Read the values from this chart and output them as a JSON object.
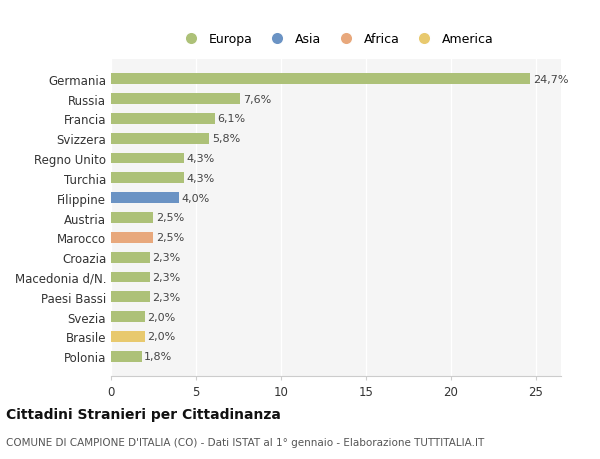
{
  "categories": [
    "Germania",
    "Russia",
    "Francia",
    "Svizzera",
    "Regno Unito",
    "Turchia",
    "Filippine",
    "Austria",
    "Marocco",
    "Croazia",
    "Macedonia d/N.",
    "Paesi Bassi",
    "Svezia",
    "Brasile",
    "Polonia"
  ],
  "values": [
    24.7,
    7.6,
    6.1,
    5.8,
    4.3,
    4.3,
    4.0,
    2.5,
    2.5,
    2.3,
    2.3,
    2.3,
    2.0,
    2.0,
    1.8
  ],
  "labels": [
    "24,7%",
    "7,6%",
    "6,1%",
    "5,8%",
    "4,3%",
    "4,3%",
    "4,0%",
    "2,5%",
    "2,5%",
    "2,3%",
    "2,3%",
    "2,3%",
    "2,0%",
    "2,0%",
    "1,8%"
  ],
  "colors": [
    "#adc178",
    "#adc178",
    "#adc178",
    "#adc178",
    "#adc178",
    "#adc178",
    "#6b93c4",
    "#adc178",
    "#e8a87c",
    "#adc178",
    "#adc178",
    "#adc178",
    "#adc178",
    "#e8c96e",
    "#adc178"
  ],
  "legend": [
    {
      "label": "Europa",
      "color": "#adc178"
    },
    {
      "label": "Asia",
      "color": "#6b93c4"
    },
    {
      "label": "Africa",
      "color": "#e8a87c"
    },
    {
      "label": "America",
      "color": "#e8c96e"
    }
  ],
  "xlim": [
    0,
    26.5
  ],
  "xticks": [
    0,
    5,
    10,
    15,
    20,
    25
  ],
  "title": "Cittadini Stranieri per Cittadinanza",
  "subtitle": "COMUNE DI CAMPIONE D'ITALIA (CO) - Dati ISTAT al 1° gennaio - Elaborazione TUTTITALIA.IT",
  "background_color": "#ffffff",
  "plot_bg_color": "#f5f5f5",
  "grid_color": "#ffffff",
  "bar_height": 0.55,
  "label_fontsize": 8.0,
  "ytick_fontsize": 8.5,
  "xtick_fontsize": 8.5
}
